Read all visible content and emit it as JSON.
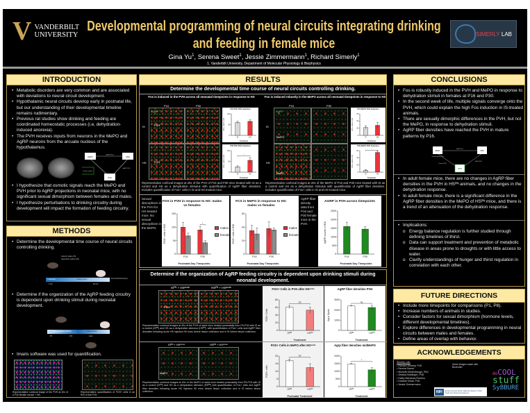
{
  "header": {
    "university": "VANDERBILT UNIVERSITY",
    "university_line1": "VANDERBILT",
    "university_line2": "UNIVERSITY",
    "title": "Developmental programming of neural circuits integrating drinking and feeding in female mice",
    "authors": [
      "Gina Yu",
      "Serena Sweet",
      "Jessie Zimmermann",
      "Richard Simerly"
    ],
    "affiliation_mark": "1",
    "affiliation": "1. Vanderbilt University, Department of Molecular Physiology & Biophysics",
    "lab_logo_a": "SIMERLY",
    "lab_logo_b": "LAB"
  },
  "introduction": {
    "heading": "INTRODUCTION",
    "bullets": [
      "Metabolic disorders are very common and are associated with deviations to neural circuit development.",
      "Hypothalamic neural circuits develop early in postnatal life, but our understanding of their developmental timeline remains rudimentary.",
      "Previous rat studies show drinking and feeding are coordinated homeostatic processes (i.e, dehydration-induced anorexia).",
      "The PVH receives inputs from neurons in the MePO and AgRP neurons from the arcuate nucleus of the hypothalamus."
    ],
    "diagram": {
      "nodes": [
        "MePO",
        "ARH",
        "PVH"
      ],
      "labels": [
        "AgRP (P10)",
        "Osmotic signals",
        "AgRP (P10)"
      ]
    },
    "hypotheses": [
      "I hypothesize that osmotic signals reach the MePO and PVH prior to AgRP projections in neonatal mice, with no significant sexual dimorphism between females and males.",
      "I hypothesize perturbations to drinking circuitry during development will impact the formation of feeding circuitry."
    ]
  },
  "methods": {
    "heading": "METHODS",
    "bullets": [
      "Determine the developmental time course of neural circuits controlling drinking.",
      "Determine if the organization of the AgRP feeding circuitry is dependent upon drinking stimuli during neonatal development.",
      "Imaris software was used for quantification."
    ],
    "timeline1": {
      "treat_a": "Isotonic saline (IS)",
      "treat_b": "Hypertonic saline (HS)",
      "start": "Treatment",
      "end": "Collect tissue",
      "t0": "0 min",
      "t1": "90 min",
      "ihc": "Immunohistochemistry"
    },
    "timeline2": {
      "phase": "Daily injections (IS/HS)",
      "end": "Collect tissue",
      "t0": "P5",
      "t1": "P15",
      "t2": "Adult"
    },
    "image_captions": [
      "Representative confocal image of the PVH at 20x of a P30 female mouse + HS.",
      "Representative quantification of FOS+ cells in an ROI of the PVH."
    ]
  },
  "results": {
    "heading": "RESULTS",
    "section1_title": "Determine the developmental time course of neural circuits controlling drinking.",
    "pvh_panel": {
      "title": "Fos is induced in the PVH across all neonatal timepoints in response to HS",
      "cols": [
        "P16",
        "P30"
      ],
      "rows": [
        "IS",
        "HS"
      ],
      "region": "PVH",
      "stain": "AgRP",
      "caption": "Representative confocal images at 20x of the PVH of P16 and P30 mice treated with IS as a control and HS as a dehydration stimulus with quantification of AgRP fiber densities. Includes quantification of Fos+ cells in IS and HS treated mice."
    },
    "mepo_panel": {
      "title": "Fos is induced robustly in the MePO across all neonatal timepoints in response to HS",
      "cols": [
        "P16",
        "P30"
      ],
      "rows": [
        "IS",
        "HS"
      ],
      "region": "MePO",
      "stain": "AgRP",
      "caption": "Representative confocal images at 20x of the MePO of P16 and P30 mice treated with IS as a control and HS as a dehydration stimulus with quantification of AgRP fiber densities. Includes quantification of Fos+ cells in IS and HS treated mice."
    },
    "side_text_dimorphism": "Sexual dimorphism in the PVH for HS-treated mice. No sexual dimorphism in the MePO.",
    "side_text_agrp": "AgRP fiber density data from P16 and P30 female mice in the PVH.",
    "section2_title": "Determine if the organization of AgRP feeding circuitry is dependent upon drinking stimuli during neonatal development.",
    "adult_pvh": {
      "cols": [
        "ISᴾᴺ + HSᵃᶜᵘᵗᵉ",
        "HSᴾᴺ + HSᵃᶜᵘᵗᵉ"
      ],
      "region": "PVH",
      "caption": "Representative confocal images at 40x of the PVH of adult mice treated postnatally from P5-P15 with IS as a control (ISᴾᴺ) and HS as a dehydration stimulus (HSᴾᴺ), with quantification of Fos+ cells and AgRP fiber densities following acute HS injection 90 mins before tissue collection and in IS before tissue collection."
    },
    "adult_mepo": {
      "cols": [
        "ISᴾᴺ + HSᵃᶜᵘᵗᵉ",
        "HSᴾᴺ + HSᵃᶜᵘᵗᵉ"
      ],
      "region": "MePO",
      "caption": "Representative confocal images at 40x of the MePO of adult mice treated postnatally from P5-P15 with IS as a control (ISᴾᴺ) and HS as a dehydration stimulus (HSᴾᴺ) with quantification of Fos+ cells and AgRP fiber densities following acute HS injection 90 mins before tissue collection and in IS before tissue collection."
    }
  },
  "chart_data": [
    {
      "id": "p16-pvh",
      "type": "bar",
      "title": "P16 PVH FOS induction",
      "ylabel": "FOS+ cells in ROI",
      "xlabel": "Treatment",
      "categories": [
        "IS",
        "HS"
      ],
      "series": [
        {
          "name": "FOS",
          "colors": [
            "#d9d9d9",
            "#e8343a"
          ],
          "values": [
            60,
            65
          ],
          "err": [
            6,
            8
          ]
        }
      ],
      "ylim": [
        0,
        100
      ],
      "yticks": [
        0,
        50,
        100
      ],
      "sig": ""
    },
    {
      "id": "p30-pvh",
      "type": "bar",
      "title": "P30 PVH FOS induction",
      "ylabel": "FOS+ cells in ROI",
      "xlabel": "Treatment",
      "categories": [
        "IS",
        "HS"
      ],
      "series": [
        {
          "name": "FOS",
          "colors": [
            "#d9d9d9",
            "#e8343a"
          ],
          "values": [
            25,
            55
          ],
          "err": [
            5,
            12
          ]
        }
      ],
      "ylim": [
        0,
        100
      ],
      "yticks": [
        0,
        50,
        100
      ],
      "sig": "*"
    },
    {
      "id": "p16-mepo",
      "type": "bar",
      "title": "P16 MePO FOS induction",
      "ylabel": "FOS+ cells in ROI",
      "xlabel": "Treatment",
      "categories": [
        "IS",
        "HS"
      ],
      "series": [
        {
          "name": "FOS",
          "colors": [
            "#d9d9d9",
            "#e8343a"
          ],
          "values": [
            22,
            28
          ],
          "err": [
            5,
            8
          ]
        }
      ],
      "ylim": [
        0,
        60
      ],
      "yticks": [
        0,
        20,
        40,
        60
      ],
      "sig": ""
    },
    {
      "id": "p30-mepo",
      "type": "bar",
      "title": "P30 MePO FOS induction",
      "ylabel": "FOS+ cells in ROI",
      "xlabel": "Treatment",
      "categories": [
        "IS",
        "HS"
      ],
      "series": [
        {
          "name": "FOS",
          "colors": [
            "#d9d9d9",
            "#e8343a"
          ],
          "values": [
            5,
            55
          ],
          "err": [
            2,
            4
          ]
        }
      ],
      "ylim": [
        0,
        60
      ],
      "yticks": [
        0,
        20,
        40,
        60
      ],
      "sig": "*"
    },
    {
      "id": "pvh-sex",
      "type": "bar",
      "title": "FOS in PVH in response to HS: males vs females",
      "ylabel": "FOS+ cells in ROI",
      "xlabel": "Postnatal Day Timepoints",
      "categories": [
        "P16",
        "P30"
      ],
      "series": [
        {
          "name": "males",
          "color": "#e8343a",
          "values": [
            100,
            90
          ],
          "err": [
            18,
            12
          ]
        },
        {
          "name": "females",
          "color": "#8c8c8c",
          "values": [
            68,
            42
          ],
          "err": [
            10,
            8
          ]
        }
      ],
      "ylim": [
        0,
        150
      ],
      "yticks": [
        0,
        50,
        100,
        150
      ],
      "sig": "*"
    },
    {
      "id": "mepo-sex",
      "type": "bar",
      "title": "FCS in MePO in response to HS: males vs females",
      "ylabel": "FOS+ cells in ROI",
      "xlabel": "Postnatal Day Timepoints",
      "categories": [
        "P16",
        "P30"
      ],
      "series": [
        {
          "name": "males",
          "color": "#e8343a",
          "values": [
            35,
            38
          ],
          "err": [
            8,
            10
          ]
        },
        {
          "name": "females",
          "color": "#8c8c8c",
          "values": [
            30,
            36
          ],
          "err": [
            9,
            3
          ]
        }
      ],
      "ylim": [
        0,
        60
      ],
      "yticks": [
        0,
        20,
        40,
        60
      ],
      "sig": ""
    },
    {
      "id": "agrp-time",
      "type": "bar",
      "title": "AGRP in PVH across timepoints",
      "ylabel": "AgRP counts in ROI",
      "xlabel": "Postnatal Day Timepoints",
      "categories": [
        "P16",
        "P30"
      ],
      "series": [
        {
          "name": "AgRP",
          "color": "#1f8a1f",
          "values": [
            1600,
            1450
          ],
          "err": [
            250,
            150
          ]
        }
      ],
      "ylim": [
        0,
        2500
      ],
      "yticks": [
        0,
        500,
        1000,
        1500,
        2000,
        2500
      ],
      "sig": ""
    },
    {
      "id": "adult-pvh-fos",
      "type": "bar",
      "title": "FOS+ Cells in PVH after HSᵃᶜᵘᵗᵉ",
      "ylabel": "FOS+ Cells",
      "xlabel": "Treatment",
      "categories": [
        "ISᴾᴺ",
        "HSᴾᴺ"
      ],
      "series": [
        {
          "name": "FOS",
          "colors": [
            "#ffffff",
            "#f37d7d"
          ],
          "values": [
            61,
            53
          ],
          "err": [
            4,
            8
          ]
        }
      ],
      "ylim": [
        0,
        80
      ],
      "yticks": [
        0,
        20,
        40,
        60,
        80
      ],
      "sig": "ns"
    },
    {
      "id": "adult-pvh-agrp",
      "type": "bar",
      "title": "AgRP fiber densities PVH",
      "ylabel": "Agrp Spots",
      "xlabel": "Treatment",
      "categories": [
        "ISᴾᴺ",
        "HSᴾᴺ"
      ],
      "series": [
        {
          "name": "AgRP",
          "colors": [
            "#ffffff",
            "#1f8a1f"
          ],
          "values": [
            2400,
            2250
          ],
          "err": [
            50,
            200
          ]
        }
      ],
      "ylim": [
        0,
        3000
      ],
      "yticks": [
        0,
        1000,
        2000,
        3000
      ],
      "sig": "ns"
    },
    {
      "id": "adult-mepo-fos",
      "type": "bar",
      "title": "FOS+ Cells in MePO after HSᵃᶜᵘᵗᵉ",
      "ylabel": "FOS+ cells",
      "xlabel": "Postnatal Treatment",
      "categories": [
        "ISᴾᴺ",
        "HSᴾᴺ"
      ],
      "series": [
        {
          "name": "FOS",
          "colors": [
            "#ffffff",
            "#f37d7d"
          ],
          "values": [
            17,
            12.5
          ],
          "err": [
            1,
            2.5
          ]
        }
      ],
      "ylim": [
        0,
        20
      ],
      "yticks": [
        0,
        5,
        10,
        15,
        20
      ],
      "sig": "ns"
    },
    {
      "id": "adult-mepo-agrp",
      "type": "bar",
      "title": "Agrp fiber densities midMePO",
      "ylabel": "",
      "xlabel": "Treatment",
      "categories": [
        "ISᴾᴺ",
        "HSᴾᴺ"
      ],
      "series": [
        {
          "name": "AgRP",
          "colors": [
            "#ffffff",
            "#1f8a1f"
          ],
          "values": [
            1480,
            1100
          ],
          "err": [
            40,
            150
          ]
        }
      ],
      "ylim": [
        0,
        2000
      ],
      "yticks": [
        0,
        500,
        1000,
        1500,
        2000
      ],
      "sig": "*"
    }
  ],
  "conclusions": {
    "heading": "CONCLUSIONS",
    "bullets1": [
      "Fos is robustly induced in the PVH and MePO in response to dehydration stimuli in females at P16 and P30.",
      "In the second week of life, multiple signals converge onto the PVH, which could explain the high Fos induction in IS-treated animals.",
      "There are sexually dimorphic differences in the PVH, but not the MePO, in response to dehydration stimuli.",
      "AgRP fiber densities have reached the PVH in mature patterns by P16."
    ],
    "diagram": {
      "nodes": [
        "MePO",
        "ARH",
        "PVH"
      ],
      "labels": [
        "Osmotic signals (P16)",
        "AgRP fibers",
        "AgRP (P16)",
        "Osmotic (P16)"
      ]
    },
    "bullets2": [
      "In adult female mice, there are no changes in AgRP fiber densities in the PVH in HSᴾᴺ animals, and no changes in the dehydration response.",
      "In adult female mice, there is a significant difference in the AgRP fiber densities in the MePO of HSᴾᴺ mice, and there is a trend of an attenuation of the dehydration response."
    ],
    "implications_label": "Implications:",
    "implications": [
      "Energy balance regulation is further studied through defining timelines of thirst.",
      "Data can support treatment and prevention of metabolic disease in areas prone to droughts or with little access to water.",
      "Clarify understandings of hunger and thirst regulation in correlation with each other."
    ]
  },
  "future": {
    "heading": "FUTURE DIRECTIONS",
    "bullets": [
      "Include more timepoints for comparisons (P1, P8).",
      "Increase numbers of animals in studies.",
      "Consider factors for sexual dimorphism (hormone levels, different developmental timelines).",
      "Explore differences in developmental programming in neural circuits between males and females.",
      "Define areas of overlap with behavior."
    ]
  },
  "acknowledgements": {
    "heading": "ACKNOWLEDGEMENTS",
    "lab_label": "Simerly Lab:",
    "members": [
      "Richard Simerly, PhD",
      "Serena Sweet",
      "Michelle Bedenbaugh, PhD",
      "Jessica Boldinger, PhD",
      "Haley Mendoza-Romero",
      "Dollada Srisai, PhD",
      "Jessie Zimmermann"
    ],
    "biorender": "Some images made with Biorender",
    "nih": "NIH",
    "nih_text": "Eunice Kennedy Shriver National Institute of Child Health and Human Development",
    "sybbure_1": "do",
    "sybbure_2": "COOL",
    "sybbure_3": "stuff",
    "sybbure_4": "SyBBURE"
  }
}
